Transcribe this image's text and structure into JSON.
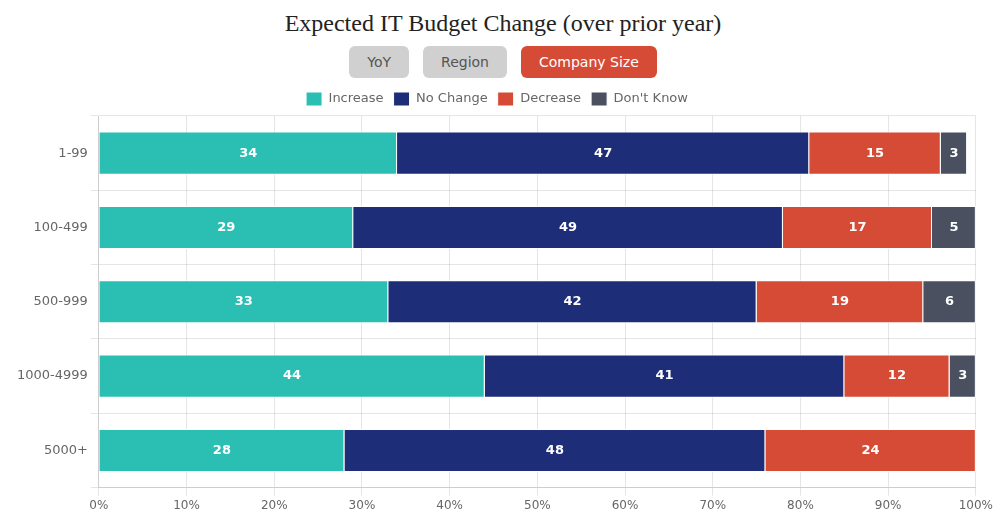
{
  "chart_data": {
    "type": "bar",
    "orientation": "horizontal",
    "stacked": true,
    "title": "Expected IT Budget Change (over prior year)",
    "annotations": [
      {
        "text": "YoY",
        "color": "#d0d0d0",
        "text_color": "#555555"
      },
      {
        "text": "Region",
        "color": "#d0d0d0",
        "text_color": "#555555"
      },
      {
        "text": "Company Size",
        "color": "#d64b36",
        "text_color": "#ffffff"
      }
    ],
    "categories": [
      "5000+",
      "1000-4999",
      "500-999",
      "100-499",
      "1-99"
    ],
    "series": [
      {
        "name": "Increase",
        "color": "#2bbfb3",
        "values": [
          28,
          44,
          33,
          29,
          34
        ]
      },
      {
        "name": "No Change",
        "color": "#1e2d78",
        "values": [
          48,
          41,
          42,
          49,
          47
        ]
      },
      {
        "name": "Decrease",
        "color": "#d64b36",
        "values": [
          24,
          12,
          19,
          17,
          15
        ]
      },
      {
        "name": "Don't Know",
        "color": "#4a5060",
        "values": [
          0,
          3,
          6,
          5,
          3
        ]
      }
    ],
    "xlim": [
      0,
      100
    ],
    "xticks": [
      {
        "value": 0,
        "label": "0%"
      },
      {
        "value": 10,
        "label": "10%"
      },
      {
        "value": 20,
        "label": "20%"
      },
      {
        "value": 30,
        "label": "30%"
      },
      {
        "value": 40,
        "label": "40%"
      },
      {
        "value": 50,
        "label": "50%"
      },
      {
        "value": 60,
        "label": "60%"
      },
      {
        "value": 70,
        "label": "70%"
      },
      {
        "value": 80,
        "label": "80%"
      },
      {
        "value": 90,
        "label": "90%"
      },
      {
        "value": 100,
        "label": "100%"
      }
    ],
    "grid": true,
    "legend": "top",
    "data_labels": true
  }
}
